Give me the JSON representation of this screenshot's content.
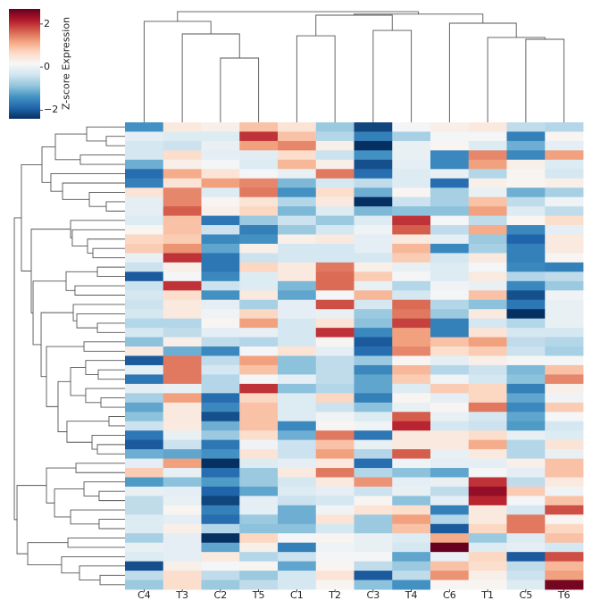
{
  "chart_data": {
    "type": "heatmap",
    "colormap": "RdBu_r",
    "columns": [
      "C4",
      "T3",
      "C2",
      "T5",
      "C1",
      "T2",
      "C3",
      "T4",
      "C6",
      "T1",
      "C5",
      "T6"
    ],
    "colorbar": {
      "label": "Z-score Expression",
      "ticks": [
        -2,
        0,
        2
      ],
      "tick_labels": [
        "−2",
        "0",
        "2"
      ],
      "range": [
        -2.4,
        2.7
      ]
    },
    "colors": [
      "#053061",
      "#2166ac",
      "#4393c3",
      "#92c5de",
      "#d1e5f0",
      "#f7f7f7",
      "#fddbc7",
      "#f4a582",
      "#d6604d",
      "#b2182b",
      "#67001f"
    ],
    "values": [
      [
        -1.4,
        0.4,
        0.3,
        0.9,
        0.5,
        -0.8,
        -2.2,
        0.1,
        0.3,
        0.4,
        -0.5,
        -0.6
      ],
      [
        -0.1,
        -0.2,
        -0.2,
        2.0,
        0.9,
        -0.6,
        -1.6,
        -0.7,
        0.1,
        0.1,
        -1.6,
        0.2
      ],
      [
        -0.3,
        -0.4,
        -0.05,
        1.2,
        1.4,
        0.3,
        -2.4,
        -0.05,
        0.2,
        -0.2,
        -1.1,
        -0.1
      ],
      [
        -0.3,
        0.6,
        -0.1,
        -0.15,
        0.6,
        -0.4,
        -1.4,
        -0.05,
        -1.5,
        1.4,
        -1.5,
        1.2
      ],
      [
        -1.1,
        0.3,
        0.1,
        -0.2,
        1.0,
        0.3,
        -2.1,
        -0.1,
        -1.5,
        1.2,
        0.3,
        -0.2
      ],
      [
        -1.8,
        1.1,
        0.5,
        0.1,
        -0.05,
        1.5,
        -1.8,
        -0.2,
        -0.05,
        -0.6,
        0.2,
        -0.3
      ],
      [
        -1.6,
        0.5,
        1.2,
        1.4,
        -1.0,
        -0.3,
        -0.5,
        -0.2,
        -1.8,
        0.3,
        0.2,
        0.3
      ],
      [
        0.5,
        1.4,
        -0.2,
        1.5,
        -1.4,
        0.6,
        -1.1,
        0.2,
        -0.7,
        -0.05,
        -1.1,
        -0.7
      ],
      [
        -0.1,
        1.4,
        0.2,
        0.5,
        -0.6,
        0.4,
        -2.4,
        -0.4,
        -0.7,
        0.9,
        -0.5,
        0.05
      ],
      [
        -0.1,
        1.7,
        0.3,
        0.7,
        -1.0,
        -0.2,
        -1.0,
        -0.9,
        -0.9,
        1.2,
        -0.2,
        -0.5
      ],
      [
        -0.2,
        0.9,
        -1.7,
        -0.8,
        -0.4,
        -0.8,
        -0.2,
        2.0,
        0.1,
        -0.5,
        0.2,
        0.6
      ],
      [
        0.2,
        0.9,
        -0.4,
        -1.6,
        -0.8,
        -0.3,
        0.05,
        1.7,
        -0.5,
        1.1,
        -1.5,
        -0.1
      ],
      [
        0.7,
        0.8,
        -1.5,
        -1.4,
        0.3,
        0.4,
        -0.1,
        0.4,
        -0.1,
        -0.8,
        -1.9,
        0.4
      ],
      [
        0.8,
        1.3,
        -1.2,
        0.3,
        -0.3,
        -0.3,
        -0.1,
        1.0,
        -1.5,
        -0.7,
        -1.6,
        0.4
      ],
      [
        -0.05,
        2.0,
        -1.7,
        -0.4,
        -0.3,
        -0.3,
        -0.3,
        0.8,
        -0.3,
        0.4,
        -1.6,
        0.2
      ],
      [
        -0.4,
        0.3,
        -1.7,
        0.7,
        0.4,
        1.5,
        0.3,
        -0.05,
        -0.2,
        0.1,
        -1.5,
        -1.6
      ],
      [
        -2.0,
        0.1,
        -1.5,
        -0.2,
        0.4,
        1.6,
        0.8,
        0.1,
        -0.2,
        0.4,
        -0.6,
        -0.5
      ],
      [
        -0.4,
        2.0,
        -0.4,
        -0.2,
        -1.0,
        1.6,
        -0.05,
        -0.6,
        0.05,
        -0.05,
        -1.5,
        -0.8
      ],
      [
        -0.3,
        0.6,
        -1.4,
        0.4,
        -1.2,
        0.1,
        1.0,
        -0.3,
        0.1,
        0.9,
        -2.1,
        0.05
      ],
      [
        -0.4,
        0.4,
        -0.1,
        -0.7,
        -0.1,
        1.8,
        -0.3,
        1.6,
        -0.6,
        -0.9,
        -1.7,
        -0.05
      ],
      [
        -0.3,
        0.4,
        0.05,
        0.7,
        -0.1,
        -0.05,
        -0.8,
        1.5,
        -0.8,
        0.4,
        -2.4,
        -0.05
      ],
      [
        -0.6,
        -0.6,
        0.2,
        1.2,
        -0.3,
        0.5,
        -0.9,
        1.9,
        -1.6,
        -0.3,
        -0.6,
        -0.05
      ],
      [
        -0.3,
        -0.5,
        -0.1,
        -0.05,
        -0.3,
        2.0,
        -1.5,
        1.2,
        -1.6,
        0.5,
        -0.3,
        -0.3
      ],
      [
        -0.9,
        0.3,
        -0.5,
        -0.6,
        -0.3,
        0.2,
        -2.0,
        1.2,
        0.9,
        1.2,
        -0.5,
        -0.6
      ],
      [
        0.4,
        -1.1,
        -1.5,
        0.1,
        0.5,
        -0.1,
        -1.8,
        1.4,
        0.6,
        0.8,
        -0.4,
        -0.7
      ],
      [
        -2.0,
        1.5,
        -0.5,
        1.2,
        -0.9,
        -0.5,
        -0.8,
        0.2,
        -0.1,
        0.3,
        0.1,
        0.1
      ],
      [
        -0.1,
        1.5,
        -0.3,
        0.9,
        -0.9,
        -0.5,
        -1.5,
        1.0,
        -0.6,
        -0.4,
        -1.0,
        0.9
      ],
      [
        -1.7,
        1.5,
        -0.6,
        0.1,
        -0.1,
        -0.5,
        -1.2,
        0.8,
        0.05,
        -0.3,
        -0.9,
        1.4
      ],
      [
        -0.1,
        -0.05,
        -0.6,
        2.0,
        -0.9,
        -0.6,
        -1.2,
        -0.2,
        0.8,
        0.7,
        -1.6,
        0.3
      ],
      [
        -0.7,
        1.2,
        -1.8,
        0.7,
        -0.2,
        0.7,
        -1.6,
        0.2,
        -0.1,
        0.7,
        -1.2,
        0.05
      ],
      [
        -1.2,
        0.4,
        -1.5,
        0.9,
        -0.2,
        -0.4,
        -0.9,
        -0.05,
        0.2,
        1.5,
        -1.5,
        0.8
      ],
      [
        -0.9,
        0.4,
        -2.1,
        0.9,
        -0.2,
        0.05,
        -0.2,
        1.7,
        -0.05,
        -0.3,
        -1.2,
        0.1
      ],
      [
        -0.4,
        0.4,
        -1.1,
        0.9,
        -1.5,
        0.2,
        0.05,
        2.1,
        -0.3,
        -0.4,
        -1.3,
        -0.3
      ],
      [
        -1.7,
        -0.05,
        -0.8,
        0.6,
        -1.1,
        1.5,
        -1.7,
        0.4,
        0.4,
        0.6,
        -0.05,
        -0.2
      ],
      [
        -2.0,
        -0.4,
        -1.7,
        0.05,
        -0.4,
        0.9,
        -0.05,
        0.4,
        0.4,
        1.1,
        -0.6,
        0.5
      ],
      [
        -1.1,
        -1.2,
        -1.4,
        0.5,
        -0.4,
        1.2,
        -0.6,
        1.7,
        -0.05,
        0.4,
        -0.6,
        -0.05
      ],
      [
        -0.1,
        1.2,
        -2.4,
        -0.2,
        -0.1,
        0.4,
        -1.8,
        0.05,
        -0.1,
        -0.1,
        0.3,
        0.9
      ],
      [
        0.8,
        -0.05,
        -1.8,
        -0.8,
        0.4,
        1.5,
        -0.6,
        -0.9,
        -1.2,
        0.1,
        -0.1,
        0.9
      ],
      [
        -1.3,
        -0.9,
        -1.3,
        -0.8,
        -0.3,
        0.4,
        1.3,
        -0.1,
        -0.05,
        2.0,
        -0.5,
        0.4
      ],
      [
        -0.05,
        -0.1,
        -1.9,
        -1.2,
        -0.2,
        -0.1,
        -0.4,
        -0.05,
        -0.5,
        2.4,
        0.8,
        0.05
      ],
      [
        -0.5,
        -0.05,
        -2.2,
        -0.1,
        -0.4,
        -0.3,
        0.2,
        -0.9,
        -0.1,
        2.1,
        0.1,
        0.9
      ],
      [
        -0.5,
        0.2,
        -1.6,
        -0.1,
        -1.1,
        0.05,
        0.5,
        0.6,
        -1.6,
        0.4,
        -0.3,
        1.8
      ],
      [
        -0.2,
        -0.1,
        -1.8,
        -0.8,
        -1.1,
        0.5,
        -0.8,
        1.2,
        -0.6,
        0.4,
        1.5,
        0.2
      ],
      [
        -0.2,
        0.3,
        -0.6,
        -0.9,
        -0.9,
        -0.3,
        -0.8,
        0.9,
        -2.0,
        0.7,
        1.5,
        0.7
      ],
      [
        -0.7,
        -0.1,
        -2.4,
        0.7,
        0.1,
        0.2,
        -0.05,
        -0.2,
        1.1,
        -0.8,
        -0.2,
        0.9
      ],
      [
        -0.05,
        -0.1,
        -1.2,
        0.3,
        -1.6,
        0.05,
        -0.05,
        -0.3,
        2.7,
        -0.2,
        -0.1,
        -0.3
      ],
      [
        -0.2,
        -0.1,
        0.4,
        -0.6,
        -0.4,
        0.1,
        0.1,
        -1.2,
        -0.05,
        0.7,
        -2.0,
        1.8
      ],
      [
        -2.1,
        0.3,
        0.1,
        0.2,
        -1.2,
        0.2,
        -0.5,
        -0.8,
        0.9,
        0.6,
        -0.5,
        1.0
      ],
      [
        -0.5,
        0.6,
        -0.5,
        -0.8,
        -0.3,
        0.5,
        -2.0,
        -0.5,
        1.3,
        0.3,
        -0.4,
        1.2
      ],
      [
        -0.8,
        0.6,
        -0.8,
        -0.5,
        -0.3,
        0.2,
        -0.9,
        -1.4,
        0.2,
        0.2,
        -0.2,
        2.6
      ]
    ],
    "col_dendrogram": [
      [
        0,
        [
          1,
          [
            2,
            3,
            6.0
          ],
          8.25
        ],
        9.42
      ],
      [
        [
          [
            4,
            5,
            8.08
          ],
          [
            6,
            7,
            8.58
          ],
          10.0
        ],
        [
          8,
          [
            9,
            [
              10,
              11,
              7.75
            ],
            7.92
          ],
          9.25
        ],
        10.1
      ],
      10.33
    ],
    "row_dendrogram": [
      [
        [
          [
            [
              0,
              [
                1,
                2,
                1.75
              ],
              3.58
            ],
            [
              3,
              4,
              4.17
            ],
            6.5
          ],
          [
            5,
            [
              6,
              [
                7,
                [
                  8,
                  9,
                  1.75
                ],
                3.33
              ],
              5.83
            ],
            6.92
          ],
          7.75
        ],
        [
          [
            10,
            [
              11,
              [
                12,
                [
                  13,
                  14,
                  3.0
                ],
                3.5
              ],
              4.92
            ],
            5.08
          ],
          [
            [
              [
                15,
                16,
                2.58
              ],
              [
                17,
                18,
                4.67
              ],
              5.5
            ],
            [
              [
                19,
                [
                  20,
                  [
                    21,
                    22,
                    2.58
                  ],
                  4.5
                ],
                4.83
              ],
              [
                [
                  23,
                  24,
                  3.83
                ],
                [
                  [
                    [
                      25,
                      [
                        26,
                        27,
                        2.5
                      ],
                      3.67
                    ],
                    [
                      28,
                      [
                        29,
                        30,
                        2.25
                      ],
                      3.67
                    ],
                    5.08
                  ],
                  [
                    [
                      31,
                      32,
                      1.5
                    ],
                    [
                      33,
                      [
                        34,
                        35,
                        2.58
                      ],
                      3.08
                    ],
                    5.42
                  ],
                  6.25
                ],
                7.33
              ],
              7.83
            ],
            8.58
          ],
          8.75
        ],
        9.67
      ],
      [
        [
          [
            36,
            37,
            4.58
          ],
          [
            [
              38,
              [
                39,
                40,
                2.42
              ],
              3.83
            ],
            [
              41,
              [
                42,
                43,
                2.42
              ],
              5.08
            ],
            6.58
          ],
          7.33
        ],
        [
          [
            44,
            45,
            5.33
          ],
          [
            46,
            [
              47,
              [
                48,
                49,
                2.33
              ],
              4.25
            ],
            5.92
          ],
          9.08
        ],
        10.08
      ],
      10.33
    ]
  }
}
